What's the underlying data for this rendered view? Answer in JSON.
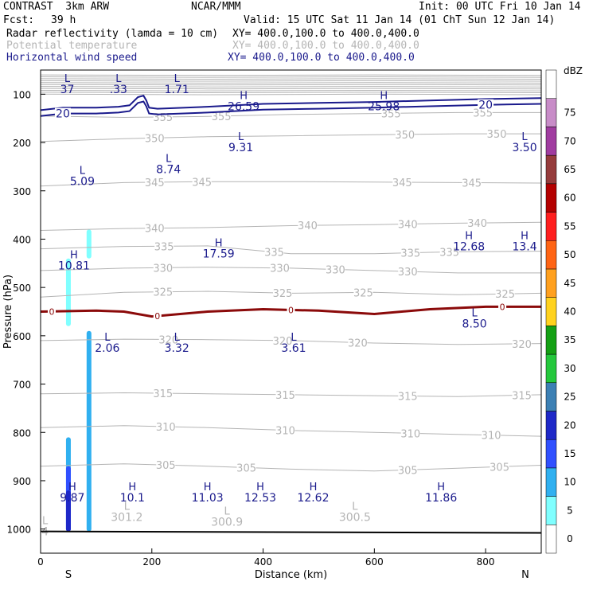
{
  "header": {
    "model": "CONTRAST  3km ARW",
    "org": "NCAR/MMM",
    "init": "Init: 00 UTC Fri 10 Jan 14",
    "fcst_label": "Fcst:",
    "fcst_value": "39 h",
    "valid": "Valid: 15 UTC Sat 11 Jan 14 (01 ChT Sun 12 Jan 14)",
    "field1": "Radar reflectivity (lamda = 10 cm)",
    "field1_xy": "XY= 400.0,100.0 to 400.0,400.0",
    "field2": "Potential temperature",
    "field2_xy": "XY= 400.0,100.0 to 400.0,400.0",
    "field3": "Horizontal wind speed",
    "field3_xy": "XY= 400.0,100.0 to 400.0,400.0"
  },
  "colors": {
    "theta": "#b4b4b4",
    "wind": "#1a1a8c",
    "zero_line": "#8b0a0a",
    "field1_text": "#000000",
    "field2_text": "#b4b4b4",
    "field3_text": "#1a1a8c"
  },
  "chart_data": {
    "type": "cross-section",
    "xlabel": "Distance (km)",
    "ylabel": "Pressure (hPa)",
    "xlim": [
      0,
      900
    ],
    "ylim": [
      1050,
      50
    ],
    "x_ticks": [
      0,
      200,
      400,
      600,
      800
    ],
    "y_ticks": [
      100,
      200,
      300,
      400,
      500,
      600,
      700,
      800,
      900,
      1000
    ],
    "x_end_labels": {
      "left": "S",
      "right": "N"
    },
    "colorbar": {
      "title": "dBZ",
      "levels": [
        0,
        5,
        10,
        15,
        20,
        25,
        30,
        35,
        40,
        45,
        50,
        55,
        60,
        65,
        70,
        75
      ],
      "colors": [
        "#ffffff",
        "#80ffff",
        "#30b0f0",
        "#3050ff",
        "#1e28c8",
        "#3c80b4",
        "#24c83c",
        "#14a014",
        "#ffd21e",
        "#ffa01e",
        "#ff6414",
        "#ff1e1e",
        "#b40000",
        "#963c3c",
        "#a03ca0",
        "#c88cc8"
      ]
    },
    "theta_contours": [
      {
        "label": "350",
        "p": [
          [
            0,
            198
          ],
          [
            150,
            192
          ],
          [
            300,
            188
          ],
          [
            450,
            186
          ],
          [
            600,
            184
          ],
          [
            750,
            182
          ],
          [
            900,
            182
          ]
        ],
        "label_x": [
          205,
          655,
          820
        ]
      },
      {
        "label": "345",
        "p": [
          [
            0,
            290
          ],
          [
            150,
            283
          ],
          [
            300,
            281
          ],
          [
            450,
            281
          ],
          [
            600,
            282
          ],
          [
            750,
            283
          ],
          [
            900,
            284
          ]
        ],
        "label_x": [
          205,
          290,
          650,
          775
        ]
      },
      {
        "label": "340",
        "p": [
          [
            0,
            382
          ],
          [
            150,
            378
          ],
          [
            300,
            376
          ],
          [
            450,
            372
          ],
          [
            600,
            370
          ],
          [
            750,
            367
          ],
          [
            900,
            365
          ]
        ],
        "label_x": [
          205,
          480,
          660,
          785
        ]
      },
      {
        "label": "335",
        "p": [
          [
            0,
            420
          ],
          [
            150,
            415
          ],
          [
            300,
            414
          ],
          [
            450,
            430
          ],
          [
            600,
            430
          ],
          [
            750,
            426
          ],
          [
            900,
            425
          ]
        ],
        "label_x": [
          222,
          420,
          665,
          735
        ]
      },
      {
        "label": "330",
        "p": [
          [
            0,
            465
          ],
          [
            150,
            460
          ],
          [
            300,
            458
          ],
          [
            450,
            460
          ],
          [
            600,
            465
          ],
          [
            750,
            470
          ],
          [
            900,
            470
          ]
        ],
        "label_x": [
          220,
          430,
          530,
          660
        ]
      },
      {
        "label": "325",
        "p": [
          [
            0,
            520
          ],
          [
            150,
            510
          ],
          [
            300,
            508
          ],
          [
            450,
            512
          ],
          [
            600,
            510
          ],
          [
            750,
            515
          ],
          [
            900,
            512
          ]
        ],
        "label_x": [
          220,
          435,
          580,
          835
        ]
      },
      {
        "label": "320",
        "p": [
          [
            0,
            610
          ],
          [
            150,
            607
          ],
          [
            300,
            608
          ],
          [
            450,
            610
          ],
          [
            600,
            615
          ],
          [
            750,
            618
          ],
          [
            900,
            616
          ]
        ],
        "label_x": [
          230,
          435,
          570,
          865
        ]
      },
      {
        "label": "315",
        "p": [
          [
            0,
            720
          ],
          [
            150,
            718
          ],
          [
            300,
            720
          ],
          [
            450,
            722
          ],
          [
            600,
            724
          ],
          [
            750,
            726
          ],
          [
            900,
            722
          ]
        ],
        "label_x": [
          220,
          440,
          660,
          865
        ]
      },
      {
        "label": "310",
        "p": [
          [
            0,
            790
          ],
          [
            150,
            786
          ],
          [
            300,
            790
          ],
          [
            450,
            796
          ],
          [
            600,
            800
          ],
          [
            750,
            804
          ],
          [
            900,
            808
          ]
        ],
        "label_x": [
          225,
          440,
          665,
          810
        ]
      },
      {
        "label": "305",
        "p": [
          [
            0,
            870
          ],
          [
            150,
            865
          ],
          [
            300,
            870
          ],
          [
            450,
            876
          ],
          [
            600,
            880
          ],
          [
            750,
            874
          ],
          [
            900,
            868
          ]
        ],
        "label_x": [
          225,
          370,
          660,
          825
        ]
      }
    ],
    "theta_upper_levels": [
      60,
      64,
      68,
      72,
      76,
      80,
      84,
      88,
      92,
      96,
      100
    ],
    "theta_355": {
      "label": "355",
      "p": [
        [
          0,
          145
        ],
        [
          150,
          148
        ],
        [
          300,
          146
        ],
        [
          450,
          142
        ],
        [
          600,
          140
        ],
        [
          750,
          138
        ],
        [
          900,
          138
        ]
      ],
      "label_x": [
        220,
        325,
        630,
        795
      ]
    },
    "wind_20_contour": [
      [
        0,
        145
      ],
      [
        40,
        140
      ],
      [
        100,
        140
      ],
      [
        140,
        138
      ],
      [
        160,
        135
      ],
      [
        175,
        118
      ],
      [
        185,
        115
      ],
      [
        190,
        125
      ],
      [
        195,
        140
      ],
      [
        210,
        142
      ],
      [
        300,
        138
      ],
      [
        400,
        132
      ],
      [
        500,
        130
      ],
      [
        600,
        128
      ],
      [
        700,
        125
      ],
      [
        800,
        122
      ],
      [
        900,
        120
      ]
    ],
    "wind_20_labels_x": [
      40,
      800
    ],
    "zero_contour": [
      [
        0,
        550
      ],
      [
        100,
        548
      ],
      [
        150,
        550
      ],
      [
        200,
        560
      ],
      [
        300,
        550
      ],
      [
        400,
        545
      ],
      [
        500,
        548
      ],
      [
        600,
        555
      ],
      [
        700,
        545
      ],
      [
        800,
        540
      ],
      [
        900,
        540
      ]
    ],
    "zero_labels_x": [
      20,
      210,
      450,
      830
    ],
    "reflectivity_columns": [
      {
        "x": 50,
        "p_top": 810,
        "p_bottom": 1005,
        "dbz": 10
      },
      {
        "x": 50,
        "p_top": 870,
        "p_bottom": 1005,
        "dbz": 15
      },
      {
        "x": 50,
        "p_top": 920,
        "p_bottom": 1005,
        "dbz": 20
      },
      {
        "x": 50,
        "p_top": 440,
        "p_bottom": 580,
        "dbz": 5
      },
      {
        "x": 87,
        "p_top": 590,
        "p_bottom": 1005,
        "dbz": 10
      },
      {
        "x": 87,
        "p_top": 380,
        "p_bottom": 440,
        "dbz": 5
      }
    ],
    "extrema": [
      {
        "kind": "L",
        "value": "37",
        "x": 48,
        "p": 75,
        "color": "wind"
      },
      {
        "kind": "L",
        "value": ".33",
        "x": 140,
        "p": 75,
        "color": "wind"
      },
      {
        "kind": "L",
        "value": "1.71",
        "x": 245,
        "p": 75,
        "color": "wind"
      },
      {
        "kind": "H",
        "value": "26.59",
        "x": 365,
        "p": 110,
        "color": "wind"
      },
      {
        "kind": "H",
        "value": "25.98",
        "x": 617,
        "p": 110,
        "color": "wind"
      },
      {
        "kind": "L",
        "value": "9.31",
        "x": 360,
        "p": 195,
        "color": "wind"
      },
      {
        "kind": "L",
        "value": "3.50",
        "x": 870,
        "p": 195,
        "color": "wind"
      },
      {
        "kind": "L",
        "value": "5.09",
        "x": 75,
        "p": 265,
        "color": "wind"
      },
      {
        "kind": "L",
        "value": "8.74",
        "x": 230,
        "p": 240,
        "color": "wind"
      },
      {
        "kind": "H",
        "value": "17.59",
        "x": 320,
        "p": 415,
        "color": "wind"
      },
      {
        "kind": "H",
        "value": "12.68",
        "x": 770,
        "p": 400,
        "color": "wind"
      },
      {
        "kind": "H",
        "value": "13.4",
        "x": 870,
        "p": 400,
        "color": "wind"
      },
      {
        "kind": "H",
        "value": "10.81",
        "x": 60,
        "p": 440,
        "color": "wind"
      },
      {
        "kind": "L",
        "value": "8.50",
        "x": 780,
        "p": 560,
        "color": "wind"
      },
      {
        "kind": "L",
        "value": "2.06",
        "x": 120,
        "p": 610,
        "color": "wind"
      },
      {
        "kind": "L",
        "value": "3.32",
        "x": 245,
        "p": 610,
        "color": "wind"
      },
      {
        "kind": "L",
        "value": "3.61",
        "x": 455,
        "p": 610,
        "color": "wind"
      },
      {
        "kind": "H",
        "value": "9.87",
        "x": 57,
        "p": 920,
        "color": "wind"
      },
      {
        "kind": "H",
        "value": "10.1",
        "x": 165,
        "p": 920,
        "color": "wind"
      },
      {
        "kind": "H",
        "value": "11.03",
        "x": 300,
        "p": 920,
        "color": "wind"
      },
      {
        "kind": "H",
        "value": "12.53",
        "x": 395,
        "p": 920,
        "color": "wind"
      },
      {
        "kind": "H",
        "value": "12.62",
        "x": 490,
        "p": 920,
        "color": "wind"
      },
      {
        "kind": "H",
        "value": "11.86",
        "x": 720,
        "p": 920,
        "color": "wind"
      },
      {
        "kind": "L",
        "value": "301.2",
        "x": 155,
        "p": 960,
        "color": "theta"
      },
      {
        "kind": "L",
        "value": "300.9",
        "x": 335,
        "p": 970,
        "color": "theta"
      },
      {
        "kind": "L",
        "value": "300.5",
        "x": 565,
        "p": 960,
        "color": "theta"
      },
      {
        "kind": "L",
        "value": "4",
        "x": 8,
        "p": 990,
        "color": "theta"
      }
    ]
  }
}
